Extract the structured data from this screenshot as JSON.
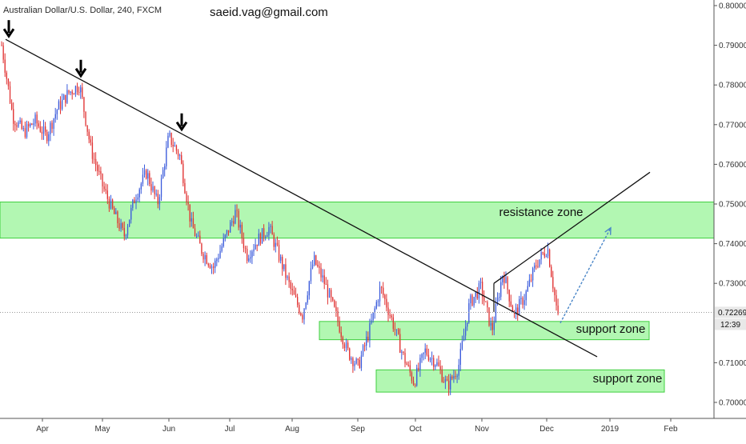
{
  "header": {
    "symbol_title": "Australian Dollar/U.S. Dollar, 240, FXCM",
    "watermark": "saeid.vag@gmail.com"
  },
  "chart_data": {
    "type": "candlestick",
    "title": "Australian Dollar/U.S. Dollar, 240, FXCM",
    "x_ticks": [
      "Apr",
      "May",
      "Jun",
      "Jul",
      "Aug",
      "Sep",
      "Oct",
      "Nov",
      "Dec",
      "2019",
      "Feb"
    ],
    "y_ticks": [
      "0.80000",
      "0.79000",
      "0.78000",
      "0.77000",
      "0.76000",
      "0.75000",
      "0.74000",
      "0.73000",
      "0.71000",
      "0.70000"
    ],
    "ylim": [
      0.6995,
      0.8015
    ],
    "current_price": "0.72269",
    "countdown": "12:39",
    "price_path": [
      [
        "Mar",
        0.79
      ],
      [
        "Mar",
        0.772
      ],
      [
        "Mar",
        0.768
      ],
      [
        "Mar",
        0.771
      ],
      [
        "Apr",
        0.767
      ],
      [
        "Apr",
        0.774
      ],
      [
        "Apr",
        0.778
      ],
      [
        "Apr",
        0.78
      ],
      [
        "Apr",
        0.764
      ],
      [
        "May",
        0.755
      ],
      [
        "May",
        0.748
      ],
      [
        "May",
        0.742
      ],
      [
        "May",
        0.752
      ],
      [
        "May",
        0.758
      ],
      [
        "Jun",
        0.75
      ],
      [
        "Jun",
        0.767
      ],
      [
        "Jun",
        0.762
      ],
      [
        "Jun",
        0.745
      ],
      [
        "Jul",
        0.738
      ],
      [
        "Jul",
        0.734
      ],
      [
        "Jul",
        0.741
      ],
      [
        "Jul",
        0.748
      ],
      [
        "Jul",
        0.737
      ],
      [
        "Aug",
        0.741
      ],
      [
        "Aug",
        0.744
      ],
      [
        "Aug",
        0.736
      ],
      [
        "Aug",
        0.728
      ],
      [
        "Aug",
        0.722
      ],
      [
        "Aug",
        0.736
      ],
      [
        "Sep",
        0.73
      ],
      [
        "Sep",
        0.722
      ],
      [
        "Sep",
        0.713
      ],
      [
        "Sep",
        0.709
      ],
      [
        "Sep",
        0.718
      ],
      [
        "Sep",
        0.729
      ],
      [
        "Oct",
        0.721
      ],
      [
        "Oct",
        0.712
      ],
      [
        "Oct",
        0.705
      ],
      [
        "Oct",
        0.713
      ],
      [
        "Oct",
        0.71
      ],
      [
        "Nov",
        0.704
      ],
      [
        "Nov",
        0.709
      ],
      [
        "Nov",
        0.725
      ],
      [
        "Nov",
        0.729
      ],
      [
        "Nov",
        0.718
      ],
      [
        "Nov",
        0.733
      ],
      [
        "Nov",
        0.722
      ],
      [
        "Dec",
        0.727
      ],
      [
        "Dec",
        0.735
      ],
      [
        "Dec",
        0.739
      ],
      [
        "Dec",
        0.72
      ]
    ],
    "zones": [
      {
        "name": "resistance zone",
        "low": 0.7414,
        "high": 0.7505,
        "span": "full"
      },
      {
        "name": "support zone",
        "low": 0.7158,
        "high": 0.7204,
        "span": "Aug-Dec"
      },
      {
        "name": "support zone",
        "low": 0.7026,
        "high": 0.7082,
        "span": "Sep-Jan"
      }
    ],
    "annotations": {
      "zone_labels": [
        "resistance zone",
        "support zone",
        "support zone"
      ],
      "downtrend_line": {
        "from": [
          "Mar",
          0.7915
        ],
        "to": [
          "Jan",
          0.7115
        ]
      },
      "rising_line": {
        "from": [
          "Nov",
          0.73
        ],
        "to": [
          "Feb",
          0.758
        ]
      },
      "projection_arrow": {
        "from": [
          "Dec",
          0.72
        ],
        "to": [
          "Jan",
          0.744
        ]
      },
      "down_arrows": [
        [
          "Mar",
          0.7915
        ],
        [
          "Apr",
          0.7815
        ],
        [
          "Jun",
          0.768
        ]
      ]
    },
    "colors": {
      "zone_fill": "#b2f7b2",
      "zone_border": "#3fcf3f",
      "bull_candle": "#3b5bdb",
      "bear_candle": "#e03131",
      "trend_line": "#111111",
      "projection_arrow": "#4a86c8",
      "price_label_bg": "#e8e8e8"
    }
  }
}
